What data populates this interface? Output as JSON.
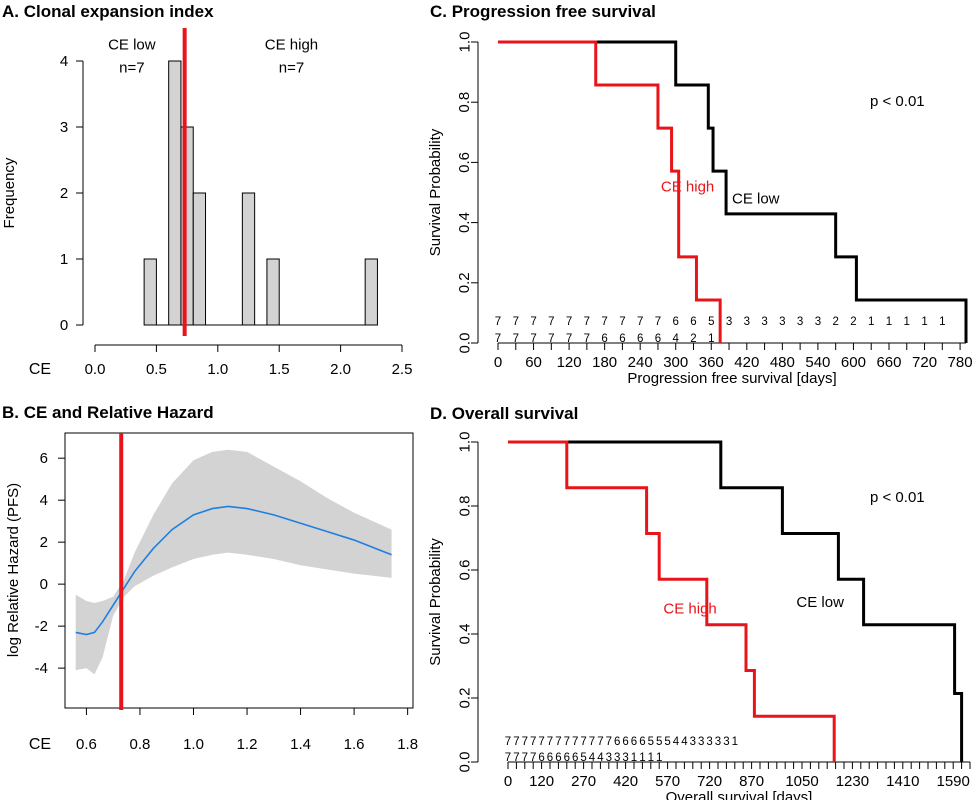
{
  "colors": {
    "red": "#e8141a",
    "black": "#000000",
    "blue": "#1f7fe0",
    "band": "#d3d3d3",
    "bar": "#d3d3d3"
  },
  "chart_data": [
    {
      "id": "A",
      "type": "bar",
      "title": "A. Clonal expansion index",
      "xlabel": "CE",
      "ylabel": "Frequency",
      "xlim": [
        0,
        2.5
      ],
      "ylim": [
        0,
        4
      ],
      "xticks": [
        "0.0",
        "0.5",
        "1.0",
        "1.5",
        "2.0",
        "2.5"
      ],
      "yticks": [
        "0",
        "1",
        "2",
        "3",
        "4"
      ],
      "bin_width": 0.1,
      "bins": [
        {
          "left": 0.4,
          "count": 1
        },
        {
          "left": 0.5,
          "count": 0
        },
        {
          "left": 0.6,
          "count": 4
        },
        {
          "left": 0.7,
          "count": 3
        },
        {
          "left": 0.8,
          "count": 2
        },
        {
          "left": 0.9,
          "count": 0
        },
        {
          "left": 1.0,
          "count": 0
        },
        {
          "left": 1.1,
          "count": 0
        },
        {
          "left": 1.2,
          "count": 2
        },
        {
          "left": 1.3,
          "count": 0
        },
        {
          "left": 1.4,
          "count": 1
        },
        {
          "left": 1.5,
          "count": 0
        },
        {
          "left": 1.6,
          "count": 0
        },
        {
          "left": 1.7,
          "count": 0
        },
        {
          "left": 1.8,
          "count": 0
        },
        {
          "left": 1.9,
          "count": 0
        },
        {
          "left": 2.0,
          "count": 0
        },
        {
          "left": 2.1,
          "count": 0
        },
        {
          "left": 2.2,
          "count": 1
        }
      ],
      "cutoff": 0.73,
      "annotations": [
        {
          "text": "CE low",
          "x": 0.3,
          "y": 4.25
        },
        {
          "text": "n=7",
          "x": 0.3,
          "y": 3.9
        },
        {
          "text": "CE high",
          "x": 1.6,
          "y": 4.25
        },
        {
          "text": "n=7",
          "x": 1.6,
          "y": 3.9
        }
      ]
    },
    {
      "id": "B",
      "type": "line",
      "title": "B. CE and Relative Hazard",
      "xlabel": "CE",
      "ylabel": "log Relative Hazard (PFS)",
      "xlim": [
        0.52,
        1.82
      ],
      "ylim": [
        -5.9,
        7.2
      ],
      "xticks": [
        "0.6",
        "0.8",
        "1.0",
        "1.2",
        "1.4",
        "1.6",
        "1.8"
      ],
      "yticks": [
        "-4",
        "-2",
        "0",
        "2",
        "4",
        "6"
      ],
      "cutoff": 0.73,
      "x": [
        0.56,
        0.6,
        0.63,
        0.66,
        0.7,
        0.74,
        0.78,
        0.85,
        0.92,
        1.0,
        1.07,
        1.13,
        1.2,
        1.3,
        1.4,
        1.5,
        1.6,
        1.74
      ],
      "y": [
        -2.3,
        -2.4,
        -2.3,
        -1.8,
        -1.0,
        -0.2,
        0.6,
        1.7,
        2.6,
        3.3,
        3.6,
        3.7,
        3.6,
        3.3,
        2.9,
        2.5,
        2.1,
        1.4
      ],
      "lower": [
        -4.1,
        -4.0,
        -4.3,
        -3.5,
        -1.5,
        -0.6,
        -0.1,
        0.4,
        0.8,
        1.2,
        1.4,
        1.5,
        1.4,
        1.2,
        0.9,
        0.7,
        0.5,
        0.3
      ],
      "upper": [
        -0.5,
        -0.8,
        -0.9,
        -0.8,
        -0.6,
        0.2,
        1.5,
        3.3,
        4.8,
        5.9,
        6.3,
        6.4,
        6.3,
        5.6,
        4.9,
        4.1,
        3.4,
        2.6
      ]
    },
    {
      "id": "C",
      "type": "line",
      "title": "C. Progression free survival",
      "xlabel": "Progression free survival [days]",
      "ylabel": "Survival Probability",
      "xlim": [
        0,
        790
      ],
      "ylim": [
        0,
        1.0
      ],
      "xticks": [
        "0",
        "60",
        "120",
        "180",
        "240",
        "300",
        "360",
        "420",
        "480",
        "540",
        "600",
        "660",
        "720",
        "780"
      ],
      "yticks": [
        "0.0",
        "0.2",
        "0.4",
        "0.6",
        "0.8",
        "1.0"
      ],
      "pvalue": "p < 0.01",
      "series": [
        {
          "name": "CE low",
          "color": "black",
          "steps": [
            [
              0,
              1.0
            ],
            [
              300,
              0.857
            ],
            [
              355,
              0.714
            ],
            [
              363,
              0.571
            ],
            [
              385,
              0.429
            ],
            [
              570,
              0.286
            ],
            [
              605,
              0.143
            ],
            [
              790,
              0.0
            ]
          ],
          "label_x": 395,
          "label_y": 0.48,
          "risk": [
            "7",
            "7",
            "7",
            "7",
            "7",
            "7",
            "7",
            "7",
            "7",
            "7",
            "6",
            "6",
            "5",
            "3",
            "3",
            "3",
            "3",
            "3",
            "3",
            "2",
            "2",
            "1",
            "1",
            "1",
            "1",
            "1"
          ]
        },
        {
          "name": "CE high",
          "color": "red",
          "steps": [
            [
              0,
              1.0
            ],
            [
              165,
              0.857
            ],
            [
              270,
              0.714
            ],
            [
              293,
              0.571
            ],
            [
              305,
              0.286
            ],
            [
              335,
              0.143
            ],
            [
              375,
              0.0
            ]
          ],
          "label_x": 275,
          "label_y": 0.52,
          "risk": [
            "7",
            "7",
            "7",
            "7",
            "7",
            "7",
            "6",
            "6",
            "6",
            "6",
            "4",
            "2",
            "1"
          ]
        }
      ]
    },
    {
      "id": "D",
      "type": "line",
      "title": "D. Overall survival",
      "xlabel": "Overall survival [days]",
      "ylabel": "Survival Probability",
      "xlim": [
        0,
        1650
      ],
      "ylim": [
        0,
        1.0
      ],
      "xticks": [
        "0",
        "120",
        "270",
        "420",
        "570",
        "720",
        "870",
        "1050",
        "1230",
        "1410",
        "1590"
      ],
      "yticks": [
        "0.0",
        "0.2",
        "0.4",
        "0.6",
        "0.8",
        "1.0"
      ],
      "pvalue": "p < 0.01",
      "series": [
        {
          "name": "CE low",
          "color": "black",
          "steps": [
            [
              0,
              1.0
            ],
            [
              760,
              0.857
            ],
            [
              980,
              0.714
            ],
            [
              1180,
              0.571
            ],
            [
              1270,
              0.429
            ],
            [
              1595,
              0.214
            ],
            [
              1620,
              0.0
            ]
          ],
          "label_x": 1030,
          "label_y": 0.5,
          "risk": [
            "7",
            "7",
            "7",
            "7",
            "7",
            "7",
            "7",
            "7",
            "7",
            "7",
            "7",
            "7",
            "7",
            "6",
            "6",
            "6",
            "6",
            "5",
            "5",
            "5",
            "4",
            "4",
            "3",
            "3",
            "3",
            "3",
            "3",
            "1"
          ]
        },
        {
          "name": "CE high",
          "color": "red",
          "steps": [
            [
              0,
              1.0
            ],
            [
              210,
              0.857
            ],
            [
              495,
              0.714
            ],
            [
              540,
              0.571
            ],
            [
              710,
              0.429
            ],
            [
              850,
              0.286
            ],
            [
              880,
              0.143
            ],
            [
              1165,
              0.0
            ]
          ],
          "label_x": 555,
          "label_y": 0.48,
          "risk": [
            "7",
            "7",
            "7",
            "7",
            "6",
            "6",
            "6",
            "6",
            "6",
            "5",
            "4",
            "4",
            "3",
            "3",
            "3",
            "1",
            "1",
            "1",
            "1"
          ]
        }
      ]
    }
  ]
}
